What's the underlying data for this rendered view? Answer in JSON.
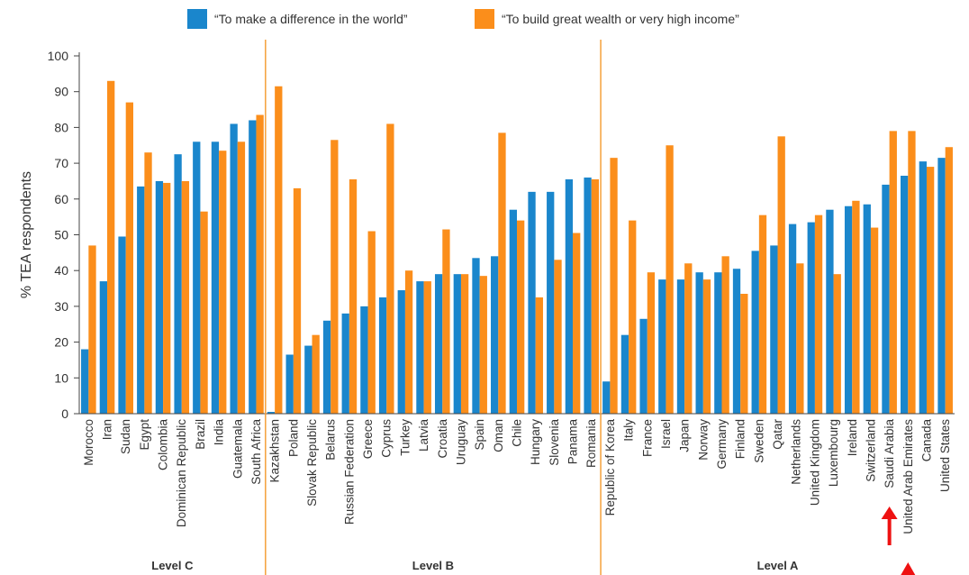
{
  "legend": {
    "series1_label": "“To make a difference in the world”",
    "series2_label": "“To build great wealth or very high income”"
  },
  "colors": {
    "series1": "#1a86cc",
    "series2": "#fb8e1b",
    "group_divider": "#f4a03a",
    "axis": "#444444",
    "gridline": "#d9d9d9",
    "annotation_arrow": "#ee1111"
  },
  "chart_data": {
    "type": "bar",
    "ylabel": "% TEA respondents",
    "xlabel": "",
    "ylim": [
      0,
      100
    ],
    "yticks": [
      0,
      10,
      20,
      30,
      40,
      50,
      60,
      70,
      80,
      90,
      100
    ],
    "grid": false,
    "legend_position": "top",
    "categories": [
      "Morocco",
      "Iran",
      "Sudan",
      "Egypt",
      "Colombia",
      "Dominican Republic",
      "Brazil",
      "India",
      "Guatemala",
      "South Africa",
      "Kazakhstan",
      "Poland",
      "Slovak Republic",
      "Belarus",
      "Russian Federation",
      "Greece",
      "Cyprus",
      "Turkey",
      "Latvia",
      "Croatia",
      "Uruguay",
      "Spain",
      "Oman",
      "Chile",
      "Hungary",
      "Slovenia",
      "Panama",
      "Romania",
      "Republic of Korea",
      "Italy",
      "France",
      "Israel",
      "Japan",
      "Norway",
      "Germany",
      "Finland",
      "Sweden",
      "Qatar",
      "Netherlands",
      "United Kingdom",
      "Luxembourg",
      "Ireland",
      "Switzerland",
      "Saudi Arabia",
      "United Arab Emirates",
      "Canada",
      "United States"
    ],
    "series": [
      {
        "name": "“To make a difference in the world”",
        "values": [
          18,
          37,
          49.5,
          63.5,
          65,
          72.5,
          76,
          76,
          81,
          82,
          0.5,
          16.5,
          19,
          26,
          28,
          30,
          32.5,
          34.5,
          37,
          39,
          39,
          43.5,
          44,
          57,
          62,
          62,
          65.5,
          66,
          9,
          22,
          26.5,
          37.5,
          37.5,
          39.5,
          39.5,
          40.5,
          45.5,
          47,
          53,
          53.5,
          57,
          58,
          58.5,
          64,
          66.5,
          70.5,
          71.5
        ]
      },
      {
        "name": "“To build great wealth or very high income”",
        "values": [
          47,
          93,
          87,
          73,
          64.5,
          65,
          56.5,
          73.5,
          76,
          83.5,
          91.5,
          63,
          22,
          76.5,
          65.5,
          51,
          81,
          40,
          37,
          51.5,
          39,
          38.5,
          78.5,
          54,
          32.5,
          43,
          50.5,
          65.5,
          71.5,
          54,
          39.5,
          75,
          42,
          37.5,
          44,
          33.5,
          55.5,
          77.5,
          42,
          55.5,
          39,
          59.5,
          52,
          79,
          79,
          69,
          74.5
        ]
      }
    ],
    "groups": [
      {
        "label": "Level C",
        "start": 0,
        "end": 9
      },
      {
        "label": "Level B",
        "start": 10,
        "end": 27
      },
      {
        "label": "Level A",
        "start": 28,
        "end": 46
      }
    ]
  },
  "annotations": [
    {
      "type": "red-arrow",
      "target": "Saudi Arabia"
    },
    {
      "type": "red-arrow",
      "target": "United Arab Emirates"
    }
  ]
}
